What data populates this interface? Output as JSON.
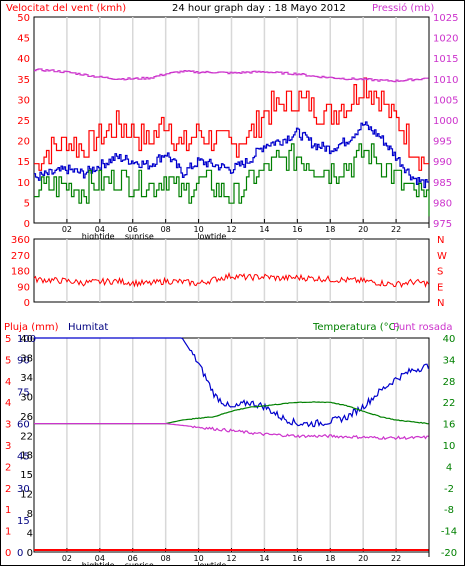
{
  "chart_data": [
    {
      "type": "line",
      "panel": "wind-and-pressure",
      "title": "24 hour graph day : 18 Mayo 2012",
      "ylabel_left": "Velocitat del vent (kmh)",
      "ylabel_right": "Pressió (mb)",
      "y_left_ticks": [
        "0",
        "5",
        "10",
        "15",
        "20",
        "25",
        "30",
        "35",
        "40",
        "45",
        "50"
      ],
      "y_right_ticks": [
        "975",
        "980",
        "985",
        "990",
        "995",
        "1000",
        "1005",
        "1010",
        "1015",
        "1020",
        "1025"
      ],
      "ylim_left": [
        0,
        50
      ],
      "ylim_right": [
        975,
        1025
      ],
      "x_ticks": [
        "02",
        "04",
        "06",
        "08",
        "10",
        "12",
        "14",
        "16",
        "18",
        "20",
        "22"
      ],
      "annotations": [
        "hightide",
        "sunrise",
        "lowtide"
      ],
      "x_hours": [
        0,
        1,
        2,
        3,
        4,
        5,
        6,
        7,
        8,
        9,
        10,
        11,
        12,
        13,
        14,
        15,
        16,
        17,
        18,
        19,
        20,
        21,
        22,
        23,
        24
      ],
      "series": [
        {
          "role": "gust",
          "axis": "left",
          "color": "#ff0000",
          "values": [
            14,
            18,
            20,
            18,
            21,
            24,
            22,
            20,
            25,
            18,
            22,
            20,
            19,
            21,
            27,
            29,
            30,
            28,
            27,
            29,
            34,
            30,
            25,
            18,
            14
          ]
        },
        {
          "role": "average",
          "axis": "left",
          "color": "#0000cc",
          "values": [
            11,
            12,
            13,
            12,
            14,
            16,
            15,
            14,
            17,
            12,
            15,
            14,
            13,
            15,
            19,
            20,
            22,
            19,
            18,
            20,
            24,
            21,
            16,
            11,
            9
          ]
        },
        {
          "role": "minimum",
          "axis": "left",
          "color": "#008000",
          "values": [
            8,
            9,
            9,
            8,
            10,
            11,
            10,
            9,
            11,
            7,
            10,
            9,
            6,
            10,
            13,
            15,
            16,
            14,
            13,
            14,
            17,
            15,
            11,
            7,
            5
          ]
        },
        {
          "role": "pressure",
          "axis": "right",
          "color": "#cc33cc",
          "values": [
            1012.2,
            1012.0,
            1011.6,
            1011.0,
            1010.4,
            1010.0,
            1010.0,
            1010.2,
            1011.2,
            1011.8,
            1011.6,
            1011.6,
            1011.4,
            1011.6,
            1011.7,
            1011.4,
            1011.2,
            1010.6,
            1010.3,
            1010.0,
            1009.9,
            1009.6,
            1009.5,
            1009.8,
            1010.2
          ]
        }
      ]
    },
    {
      "type": "line",
      "panel": "wind-direction",
      "y_left_ticks": [
        "0",
        "90",
        "180",
        "270",
        "360"
      ],
      "y_right_ticks": [
        "N",
        "E",
        "S",
        "W",
        "N"
      ],
      "ylim": [
        0,
        360
      ],
      "x_hours": [
        0,
        1,
        2,
        3,
        4,
        5,
        6,
        7,
        8,
        9,
        10,
        11,
        12,
        13,
        14,
        15,
        16,
        17,
        18,
        19,
        20,
        21,
        22,
        23,
        24
      ],
      "series": [
        {
          "role": "direction",
          "color": "#ff0000",
          "values": [
            130,
            125,
            120,
            110,
            115,
            120,
            110,
            105,
            120,
            115,
            105,
            130,
            150,
            140,
            145,
            135,
            140,
            135,
            130,
            125,
            120,
            110,
            100,
            115,
            105
          ]
        }
      ]
    },
    {
      "type": "line",
      "panel": "rain-humidity-temperature",
      "labels": {
        "rain": "Pluja (mm)",
        "humidity": "Humitat",
        "temperature": "Temperatura (°C)",
        "dewpoint": "Punt rosada"
      },
      "y_rain_ticks": [
        "0",
        "1",
        "1",
        "2",
        "2",
        "3",
        "3",
        "4",
        "4",
        "5",
        "5"
      ],
      "y_humidity_ticks": [
        "0",
        "15",
        "30",
        "45",
        "60",
        "75",
        "90",
        "100"
      ],
      "y_humidity_left_ticks": [
        "0",
        "4",
        "8",
        "12",
        "15",
        "18",
        "22",
        "26",
        "30",
        "34",
        "38",
        "40"
      ],
      "y_temp_ticks": [
        "-20",
        "-14",
        "-8",
        "-2",
        "4",
        "10",
        "16",
        "22",
        "28",
        "34",
        "40"
      ],
      "ylim_humidity": [
        0,
        100
      ],
      "ylim_temperature": [
        -20,
        40
      ],
      "x_ticks": [
        "02",
        "04",
        "06",
        "08",
        "10",
        "12",
        "14",
        "16",
        "18",
        "20",
        "22"
      ],
      "annotations": [
        "hightide",
        "sunrise",
        "lowtide"
      ],
      "x_hours": [
        0,
        1,
        2,
        3,
        4,
        5,
        6,
        7,
        8,
        9,
        10,
        11,
        12,
        13,
        14,
        15,
        16,
        17,
        18,
        19,
        20,
        21,
        22,
        23,
        24
      ],
      "series": [
        {
          "role": "humidity",
          "axis": "humidity",
          "color": "#0000cc",
          "values": [
            100,
            100,
            100,
            100,
            100,
            100,
            100,
            100,
            100,
            100,
            88,
            73,
            67,
            70,
            68,
            63,
            60,
            60,
            61,
            63,
            68,
            75,
            81,
            85,
            87
          ]
        },
        {
          "role": "temperature",
          "axis": "temperature",
          "color": "#008000",
          "values": [
            16,
            16,
            16,
            16,
            16,
            16,
            16,
            16,
            16,
            17,
            17.5,
            18,
            19.5,
            20.5,
            21,
            21.5,
            22,
            22,
            22,
            21,
            19.5,
            18,
            17,
            16.5,
            16
          ]
        },
        {
          "role": "dewpoint",
          "axis": "temperature",
          "color": "#cc33cc",
          "values": [
            16,
            16,
            16,
            16,
            16,
            16,
            16,
            16,
            16,
            15.5,
            15,
            14.5,
            14,
            13.5,
            13,
            12.8,
            12.5,
            12.5,
            12.5,
            12.3,
            12.2,
            12,
            12,
            12,
            12.2
          ]
        },
        {
          "role": "rain",
          "axis": "rain",
          "color": "#ff0000",
          "values": [
            0,
            0,
            0,
            0,
            0,
            0,
            0,
            0,
            0,
            0,
            0,
            0,
            0,
            0,
            0,
            0,
            0,
            0,
            0,
            0,
            0,
            0,
            0,
            0,
            0
          ]
        }
      ]
    }
  ]
}
